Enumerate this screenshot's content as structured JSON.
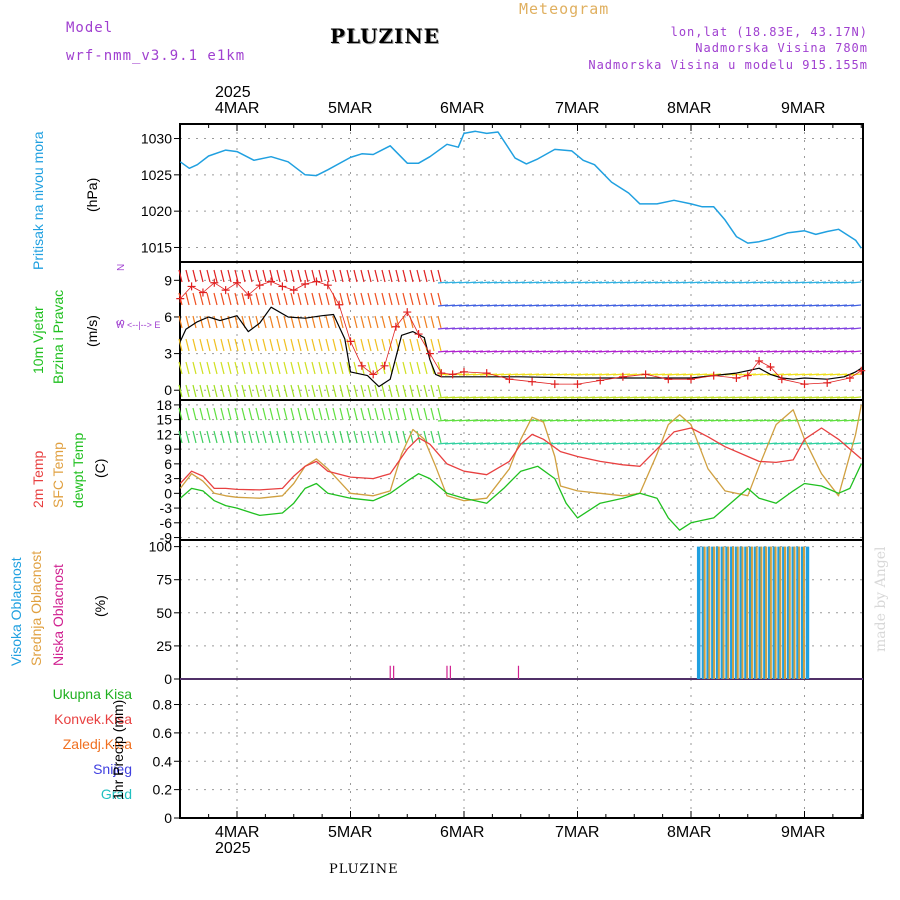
{
  "header": {
    "model_label": "Model",
    "model_name": "wrf-nmm_v3.9.1 e1km",
    "title": "PLUZINE",
    "meteogram": "Meteogram",
    "lonlat": "lon,lat (18.83E, 43.17N)",
    "elevation": "Nadmorska Visina 780m",
    "model_elevation": "Nadmorska Visina u modelu 915.155m",
    "watermark": "made by Angel",
    "footer_title": "PLUZINE"
  },
  "colors": {
    "pressure": "#20a0e0",
    "t2m": "#e84040",
    "sfc": "#d0a040",
    "dew": "#20c020",
    "high_cloud": "#20a0e0",
    "mid_cloud": "#d0a040",
    "low_cloud": "#d02090",
    "wind_speed": "#000000",
    "gust": "#e02020"
  },
  "time_axis": {
    "year_top": "2025",
    "year_bottom": "2025",
    "day_labels": [
      "4MAR",
      "5MAR",
      "6MAR",
      "7MAR",
      "8MAR",
      "9MAR"
    ]
  },
  "panel_labels": {
    "pressure": [
      "Pritisak na nivou mora",
      "(hPa)"
    ],
    "wind": [
      "10m Vjetar",
      "Brzina i Pravac",
      "(m/s)"
    ],
    "wind_dir": "N",
    "wind_dir_axis": "W <--|--> E",
    "wind_dir_sub": "S",
    "temp": [
      "2m Temp",
      "SFC Temp",
      "dewpt Temp",
      "(C)"
    ],
    "cloud": [
      "Visoka Oblacnost",
      "Srednja Oblacnost",
      "Niska Oblacnost",
      "(%)"
    ],
    "precip_unit": "1hr Precip (mm)",
    "precip_legend": [
      {
        "label": "Ukupna Kisa",
        "color": "#20b020"
      },
      {
        "label": "Konvek.Kisa",
        "color": "#e84040"
      },
      {
        "label": "Zaledj.Kisa",
        "color": "#f07020"
      },
      {
        "label": "Snijeg",
        "color": "#4040e0"
      },
      {
        "label": "Grad",
        "color": "#20c0c0"
      }
    ]
  },
  "chart_data": [
    {
      "type": "line",
      "panel": "pressure",
      "ylabel": "(hPa)",
      "ylim": [
        1013,
        1032
      ],
      "yticks": [
        1015,
        1020,
        1025,
        1030
      ],
      "x_unit": "days from 00UTC 4MAR",
      "series": [
        {
          "name": "Pritisak na nivou mora",
          "x": [
            -0.5,
            -0.42,
            -0.35,
            -0.25,
            -0.1,
            0.0,
            0.15,
            0.3,
            0.45,
            0.6,
            0.7,
            0.8,
            1.0,
            1.1,
            1.2,
            1.35,
            1.5,
            1.6,
            1.7,
            1.85,
            1.95,
            2.0,
            2.1,
            2.2,
            2.3,
            2.45,
            2.55,
            2.65,
            2.8,
            2.95,
            3.05,
            3.15,
            3.3,
            3.45,
            3.55,
            3.7,
            3.85,
            4.0,
            4.1,
            4.2,
            4.3,
            4.4,
            4.5,
            4.6,
            4.7,
            4.85,
            5.0,
            5.1,
            5.2,
            5.3,
            5.45,
            5.5
          ],
          "values": [
            1026.8,
            1025.9,
            1026.4,
            1027.6,
            1028.4,
            1028.2,
            1027.0,
            1027.5,
            1026.8,
            1025.0,
            1024.9,
            1025.7,
            1027.4,
            1027.9,
            1027.8,
            1029.0,
            1026.6,
            1026.6,
            1027.5,
            1029.2,
            1028.8,
            1030.7,
            1031.0,
            1030.7,
            1030.9,
            1027.3,
            1026.5,
            1027.2,
            1028.5,
            1028.3,
            1027.0,
            1026.4,
            1024.0,
            1022.5,
            1021.0,
            1021.0,
            1021.5,
            1021.0,
            1020.6,
            1020.6,
            1018.8,
            1016.5,
            1015.6,
            1015.8,
            1016.2,
            1017.0,
            1017.3,
            1016.8,
            1017.2,
            1017.5,
            1016.0,
            1014.9
          ]
        }
      ]
    },
    {
      "type": "line",
      "panel": "wind",
      "ylabel": "(m/s)",
      "ylim": [
        -0.8,
        10.5
      ],
      "yticks": [
        0,
        3,
        6,
        9
      ],
      "x_unit": "days from 00UTC 4MAR",
      "series": [
        {
          "name": "Brzina",
          "x": [
            -0.5,
            -0.45,
            -0.35,
            -0.25,
            -0.15,
            0.0,
            0.1,
            0.2,
            0.3,
            0.45,
            0.6,
            0.75,
            0.85,
            0.95,
            1.0,
            1.15,
            1.25,
            1.35,
            1.45,
            1.55,
            1.65,
            1.7,
            1.75,
            1.8,
            2.0,
            2.5,
            3.0,
            3.5,
            4.0,
            4.2,
            4.4,
            4.5,
            4.6,
            4.7,
            4.8,
            4.9,
            5.0,
            5.2,
            5.35,
            5.45,
            5.5
          ],
          "values": [
            4.0,
            5.0,
            5.6,
            6.0,
            5.7,
            6.1,
            4.8,
            5.5,
            6.8,
            6.0,
            5.9,
            6.1,
            6.2,
            4.2,
            1.5,
            1.2,
            0.3,
            0.9,
            4.5,
            4.8,
            4.3,
            2.5,
            1.3,
            1.1,
            1.1,
            1.1,
            1.0,
            1.0,
            1.0,
            1.2,
            1.4,
            1.6,
            1.8,
            1.3,
            1.0,
            0.9,
            1.0,
            0.9,
            1.1,
            1.5,
            1.8
          ]
        },
        {
          "name": "Udar",
          "x": [
            -0.5,
            -0.4,
            -0.3,
            -0.2,
            -0.1,
            0.0,
            0.1,
            0.2,
            0.3,
            0.4,
            0.5,
            0.6,
            0.7,
            0.8,
            0.9,
            1.0,
            1.1,
            1.2,
            1.3,
            1.4,
            1.5,
            1.6,
            1.7,
            1.8,
            1.9,
            2.0,
            2.2,
            2.4,
            2.6,
            2.8,
            3.0,
            3.2,
            3.4,
            3.6,
            3.8,
            4.0,
            4.2,
            4.4,
            4.5,
            4.6,
            4.7,
            4.8,
            5.0,
            5.2,
            5.4,
            5.5
          ],
          "values": [
            7.5,
            8.5,
            8.0,
            8.8,
            8.2,
            8.8,
            7.8,
            8.6,
            8.9,
            8.5,
            8.2,
            8.7,
            8.9,
            8.6,
            7.0,
            4.0,
            2.0,
            1.3,
            2.0,
            5.2,
            6.4,
            4.6,
            3.0,
            1.4,
            1.3,
            1.5,
            1.4,
            0.9,
            0.7,
            0.5,
            0.5,
            0.8,
            1.1,
            1.3,
            0.9,
            0.9,
            1.2,
            1.0,
            1.2,
            2.4,
            1.9,
            0.9,
            0.5,
            0.6,
            1.0,
            1.6
          ]
        }
      ]
    },
    {
      "type": "line",
      "panel": "temperature",
      "ylabel": "(C)",
      "ylim": [
        -9.5,
        19
      ],
      "yticks": [
        -9,
        -6,
        -3,
        0,
        3,
        6,
        9,
        12,
        15,
        18
      ],
      "x_unit": "days from 00UTC 4MAR",
      "series": [
        {
          "name": "2m Temp",
          "x": [
            -0.5,
            -0.4,
            -0.3,
            -0.2,
            -0.1,
            0.0,
            0.2,
            0.4,
            0.5,
            0.6,
            0.7,
            0.8,
            1.0,
            1.2,
            1.35,
            1.5,
            1.6,
            1.7,
            1.85,
            2.0,
            2.2,
            2.4,
            2.5,
            2.6,
            2.7,
            2.85,
            3.0,
            3.2,
            3.4,
            3.55,
            3.7,
            3.85,
            4.0,
            4.15,
            4.3,
            4.5,
            4.6,
            4.75,
            4.9,
            5.0,
            5.15,
            5.3,
            5.45,
            5.5
          ],
          "values": [
            2.0,
            4.5,
            3.5,
            1.0,
            1.0,
            0.8,
            0.7,
            1.0,
            3.5,
            5.5,
            6.5,
            4.5,
            3.3,
            3.0,
            4.0,
            9.0,
            11.3,
            10.0,
            6.0,
            4.5,
            3.8,
            6.5,
            10.0,
            12.0,
            11.0,
            8.5,
            7.5,
            6.5,
            5.8,
            5.5,
            9.0,
            12.5,
            13.3,
            11.5,
            9.5,
            7.5,
            6.5,
            6.3,
            6.8,
            11.0,
            13.3,
            11.0,
            8.0,
            7.0
          ]
        },
        {
          "name": "SFC Temp",
          "x": [
            -0.5,
            -0.4,
            -0.3,
            -0.2,
            -0.1,
            0.0,
            0.2,
            0.4,
            0.5,
            0.6,
            0.7,
            0.8,
            1.0,
            1.2,
            1.35,
            1.45,
            1.55,
            1.65,
            1.75,
            1.85,
            2.0,
            2.2,
            2.4,
            2.5,
            2.6,
            2.7,
            2.8,
            2.85,
            3.0,
            3.2,
            3.4,
            3.55,
            3.7,
            3.8,
            3.9,
            4.0,
            4.15,
            4.3,
            4.5,
            4.6,
            4.75,
            4.9,
            5.0,
            5.15,
            5.3,
            5.45,
            5.5
          ],
          "values": [
            1.0,
            4.0,
            2.5,
            0.0,
            -0.5,
            -0.8,
            -1.0,
            -0.5,
            2.0,
            5.5,
            7.0,
            5.0,
            0.0,
            -0.5,
            0.5,
            8.0,
            13.0,
            11.0,
            5.5,
            -0.5,
            -1.5,
            -1.0,
            5.0,
            11.0,
            15.5,
            14.5,
            7.5,
            1.5,
            0.5,
            0.0,
            -0.5,
            0.0,
            8.0,
            14.0,
            16.0,
            14.0,
            5.0,
            0.5,
            -0.5,
            5.5,
            14.0,
            17.0,
            11.0,
            4.0,
            -0.5,
            12.0,
            18.0
          ]
        },
        {
          "name": "dewpt Temp",
          "x": [
            -0.5,
            -0.4,
            -0.3,
            -0.2,
            -0.1,
            0.0,
            0.2,
            0.4,
            0.5,
            0.6,
            0.7,
            0.8,
            1.0,
            1.2,
            1.35,
            1.5,
            1.6,
            1.7,
            1.85,
            2.0,
            2.2,
            2.35,
            2.5,
            2.65,
            2.8,
            2.9,
            3.0,
            3.2,
            3.4,
            3.55,
            3.7,
            3.8,
            3.9,
            4.0,
            4.2,
            4.4,
            4.5,
            4.6,
            4.75,
            4.9,
            5.0,
            5.15,
            5.3,
            5.4,
            5.5
          ],
          "values": [
            -1.0,
            1.0,
            0.5,
            -1.5,
            -2.5,
            -3.0,
            -4.5,
            -4.0,
            -2.0,
            1.0,
            2.0,
            0.0,
            -1.0,
            -1.5,
            0.0,
            2.5,
            4.0,
            3.0,
            0.0,
            -1.0,
            -2.0,
            1.0,
            4.5,
            5.5,
            3.0,
            -2.0,
            -5.0,
            -2.0,
            -1.0,
            0.0,
            -1.0,
            -5.0,
            -7.5,
            -6.0,
            -5.0,
            -1.0,
            1.0,
            -1.0,
            -2.0,
            0.5,
            2.0,
            1.5,
            0.0,
            1.0,
            6.0
          ]
        }
      ]
    },
    {
      "type": "bar",
      "panel": "cloud",
      "ylabel": "(%)",
      "ylim": [
        0,
        105
      ],
      "yticks": [
        0,
        25,
        50,
        75,
        100
      ],
      "x_unit": "days from 00UTC 4MAR",
      "series": [
        {
          "name": "Visoka Oblacnost",
          "x_start": 4.07,
          "x_end": 5.07,
          "value": 100
        },
        {
          "name": "Srednja Oblacnost",
          "x_start": 4.1,
          "x_end": 5.0,
          "value": 100
        },
        {
          "name": "Niska Oblacnost",
          "x": [
            1.35,
            1.38,
            1.85,
            1.88,
            2.48
          ],
          "values": [
            10,
            10,
            10,
            10,
            10
          ]
        }
      ]
    },
    {
      "type": "bar",
      "panel": "precipitation",
      "ylabel": "1hr Precip (mm)",
      "ylim": [
        0,
        0.98
      ],
      "yticks": [
        0,
        0.2,
        0.4,
        0.6,
        0.8
      ],
      "x_unit": "days from 00UTC 4MAR",
      "series": [
        {
          "name": "Ukupna Kisa",
          "x": [],
          "values": []
        }
      ]
    }
  ]
}
